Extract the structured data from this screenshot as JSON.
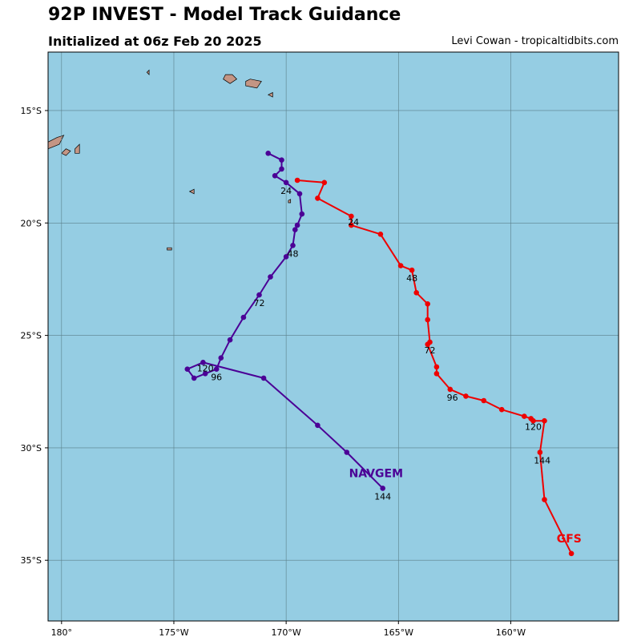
{
  "header": {
    "title": "92P INVEST - Model Track Guidance",
    "subtitle": "Initialized at 06z Feb 20 2025",
    "credit": "Levi Cowan - tropicaltidbits.com"
  },
  "colors": {
    "ocean": "#95cde3",
    "land": "#c49584",
    "grid": "#5a7f8a",
    "navgem": "#4b0096",
    "gfs": "#ee0000"
  },
  "chart_data": {
    "type": "map-track",
    "lon_range": [
      -180.6,
      -155.2
    ],
    "lat_range": [
      -37.7,
      -12.4
    ],
    "x_ticks": [
      {
        "lon": -180,
        "label": "180°"
      },
      {
        "lon": -175,
        "label": "175°W"
      },
      {
        "lon": -170,
        "label": "170°W"
      },
      {
        "lon": -165,
        "label": "165°W"
      },
      {
        "lon": -160,
        "label": "160°W"
      }
    ],
    "y_ticks": [
      {
        "lat": -15,
        "label": "15°S"
      },
      {
        "lat": -20,
        "label": "20°S"
      },
      {
        "lat": -25,
        "label": "25°S"
      },
      {
        "lat": -30,
        "label": "30°S"
      },
      {
        "lat": -35,
        "label": "35°S"
      }
    ],
    "islands": [
      [
        [
          -180.6,
          -16.4
        ],
        [
          -180.2,
          -16.2
        ],
        [
          -179.9,
          -16.1
        ],
        [
          -180.1,
          -16.5
        ],
        [
          -180.6,
          -16.7
        ]
      ],
      [
        [
          -180.0,
          -16.9
        ],
        [
          -179.8,
          -16.7
        ],
        [
          -179.6,
          -16.8
        ],
        [
          -179.8,
          -17.0
        ]
      ],
      [
        [
          -179.4,
          -16.7
        ],
        [
          -179.2,
          -16.5
        ],
        [
          -179.2,
          -16.9
        ],
        [
          -179.4,
          -16.9
        ]
      ],
      [
        [
          -176.2,
          -13.3
        ],
        [
          -176.1,
          -13.2
        ],
        [
          -176.1,
          -13.4
        ]
      ],
      [
        [
          -171.8,
          -13.7
        ],
        [
          -171.6,
          -13.6
        ],
        [
          -171.1,
          -13.7
        ],
        [
          -171.3,
          -14.0
        ],
        [
          -171.8,
          -13.9
        ]
      ],
      [
        [
          -172.7,
          -13.4
        ],
        [
          -172.4,
          -13.4
        ],
        [
          -172.2,
          -13.6
        ],
        [
          -172.5,
          -13.8
        ],
        [
          -172.8,
          -13.6
        ]
      ],
      [
        [
          -170.8,
          -14.3
        ],
        [
          -170.6,
          -14.2
        ],
        [
          -170.6,
          -14.4
        ]
      ],
      [
        [
          -174.3,
          -18.6
        ],
        [
          -174.1,
          -18.5
        ],
        [
          -174.1,
          -18.7
        ]
      ],
      [
        [
          -175.3,
          -21.1
        ],
        [
          -175.1,
          -21.1
        ],
        [
          -175.1,
          -21.2
        ],
        [
          -175.3,
          -21.2
        ]
      ],
      [
        [
          -169.9,
          -19.0
        ],
        [
          -169.8,
          -18.95
        ],
        [
          -169.8,
          -19.1
        ],
        [
          -169.9,
          -19.1
        ]
      ]
    ],
    "series": [
      {
        "name": "NAVGEM",
        "color": "#4b0096",
        "points": [
          [
            -170.8,
            -16.9
          ],
          [
            -170.2,
            -17.2
          ],
          [
            -170.2,
            -17.6
          ],
          [
            -170.5,
            -17.9
          ],
          [
            -170.0,
            -18.2
          ],
          [
            -169.4,
            -18.7
          ],
          [
            -169.3,
            -19.6
          ],
          [
            -169.5,
            -20.1
          ],
          [
            -169.6,
            -20.3
          ],
          [
            -169.7,
            -21.0
          ],
          [
            -170.0,
            -21.5
          ],
          [
            -170.7,
            -22.4
          ],
          [
            -171.2,
            -23.2
          ],
          [
            -171.9,
            -24.2
          ],
          [
            -172.5,
            -25.2
          ],
          [
            -172.9,
            -26.0
          ],
          [
            -173.1,
            -26.5
          ],
          [
            -173.6,
            -26.7
          ],
          [
            -174.1,
            -26.9
          ],
          [
            -174.4,
            -26.5
          ],
          [
            -173.7,
            -26.2
          ],
          [
            -171.0,
            -26.9
          ],
          [
            -168.6,
            -29.0
          ],
          [
            -167.3,
            -30.2
          ],
          [
            -165.7,
            -31.8
          ]
        ],
        "hour_labels": [
          {
            "lon": -170.0,
            "lat": -18.7,
            "text": "24"
          },
          {
            "lon": -169.7,
            "lat": -21.5,
            "text": "48"
          },
          {
            "lon": -171.2,
            "lat": -23.7,
            "text": "72"
          },
          {
            "lon": -173.1,
            "lat": -27.0,
            "text": "96"
          },
          {
            "lon": -173.6,
            "lat": -26.6,
            "text": "120"
          },
          {
            "lon": -165.7,
            "lat": -32.3,
            "text": "144"
          }
        ],
        "model_label": {
          "lon": -166.0,
          "lat": -31.3,
          "text": "NAVGEM"
        }
      },
      {
        "name": "GFS",
        "color": "#ee0000",
        "points": [
          [
            -169.5,
            -18.1
          ],
          [
            -168.3,
            -18.2
          ],
          [
            -168.6,
            -18.9
          ],
          [
            -167.1,
            -19.7
          ],
          [
            -167.1,
            -20.1
          ],
          [
            -165.8,
            -20.5
          ],
          [
            -164.9,
            -21.9
          ],
          [
            -164.4,
            -22.1
          ],
          [
            -164.2,
            -23.1
          ],
          [
            -163.7,
            -23.6
          ],
          [
            -163.7,
            -24.3
          ],
          [
            -163.6,
            -25.3
          ],
          [
            -163.7,
            -25.4
          ],
          [
            -163.3,
            -26.4
          ],
          [
            -163.3,
            -26.7
          ],
          [
            -162.7,
            -27.4
          ],
          [
            -162.0,
            -27.7
          ],
          [
            -161.2,
            -27.9
          ],
          [
            -160.4,
            -28.3
          ],
          [
            -159.4,
            -28.6
          ],
          [
            -159.1,
            -28.7
          ],
          [
            -159.0,
            -28.8
          ],
          [
            -158.5,
            -28.8
          ],
          [
            -158.7,
            -30.2
          ],
          [
            -158.5,
            -32.3
          ],
          [
            -157.3,
            -34.7
          ]
        ],
        "hour_labels": [
          {
            "lon": -167.0,
            "lat": -20.1,
            "text": "24"
          },
          {
            "lon": -164.4,
            "lat": -22.6,
            "text": "48"
          },
          {
            "lon": -163.6,
            "lat": -25.8,
            "text": "72"
          },
          {
            "lon": -162.6,
            "lat": -27.9,
            "text": "96"
          },
          {
            "lon": -159.0,
            "lat": -29.2,
            "text": "120"
          },
          {
            "lon": -158.6,
            "lat": -30.7,
            "text": "144"
          }
        ],
        "model_label": {
          "lon": -157.4,
          "lat": -34.2,
          "text": "GFS"
        }
      }
    ]
  }
}
